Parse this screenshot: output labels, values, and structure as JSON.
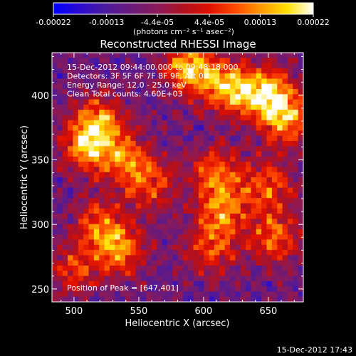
{
  "chart_data": {
    "type": "heatmap",
    "title": "Reconstructed RHESSI Image",
    "colorbar": {
      "ticks": [
        "-0.00022",
        "-0.00013",
        "-4.4e-05",
        "4.4e-05",
        "0.00013",
        "0.00022"
      ],
      "tick_values": [
        -0.00022,
        -0.00013,
        -4.4e-05,
        4.4e-05,
        0.00013,
        0.00022
      ],
      "range": [
        -0.00022,
        0.00022
      ],
      "unit_label": "(photons cm⁻² s⁻¹ asec⁻²)",
      "colors": [
        "#0000ff",
        "#2a0ad0",
        "#4b1a9e",
        "#6a1a7a",
        "#8a1a5a",
        "#b01020",
        "#e01000",
        "#ff4a00",
        "#ff9a00",
        "#ffe000",
        "#ffffff"
      ]
    },
    "xlabel": "Heliocentric X (arcsec)",
    "ylabel": "Heliocentric Y (arcsec)",
    "xlim": [
      483,
      677
    ],
    "ylim": [
      240,
      433
    ],
    "xticks": [
      500,
      550,
      600,
      650
    ],
    "yticks": [
      250,
      300,
      350,
      400
    ],
    "annotations": [
      "15-Dec-2012 09:44:00.000 to 09:48:18.000",
      "Detectors: 3F 5F 6F 7F 8F 9F, Att 0",
      "Energy Range: 12.0 - 25.0 keV",
      "Clean    Total counts: 4.60E+03"
    ],
    "peak_label": "Position of Peak = [647,401]",
    "peak": [
      647,
      401
    ],
    "grid_size": [
      48,
      48
    ],
    "bright_features": [
      {
        "x": 590,
        "y": 420,
        "strength": 1.0
      },
      {
        "x": 620,
        "y": 405,
        "strength": 0.9
      },
      {
        "x": 650,
        "y": 401,
        "strength": 1.0
      },
      {
        "x": 665,
        "y": 380,
        "strength": 0.8
      },
      {
        "x": 520,
        "y": 380,
        "strength": 0.75
      },
      {
        "x": 510,
        "y": 360,
        "strength": 0.8
      },
      {
        "x": 540,
        "y": 350,
        "strength": 0.7
      },
      {
        "x": 560,
        "y": 330,
        "strength": 0.55
      },
      {
        "x": 610,
        "y": 340,
        "strength": 0.7
      },
      {
        "x": 615,
        "y": 310,
        "strength": 0.75
      },
      {
        "x": 605,
        "y": 280,
        "strength": 0.6
      },
      {
        "x": 520,
        "y": 300,
        "strength": 0.6
      },
      {
        "x": 535,
        "y": 280,
        "strength": 0.75
      },
      {
        "x": 650,
        "y": 330,
        "strength": 0.65
      },
      {
        "x": 655,
        "y": 290,
        "strength": 0.7
      },
      {
        "x": 500,
        "y": 265,
        "strength": 0.55
      }
    ]
  },
  "footer": {
    "timestamp": "15-Dec-2012 17:43"
  }
}
